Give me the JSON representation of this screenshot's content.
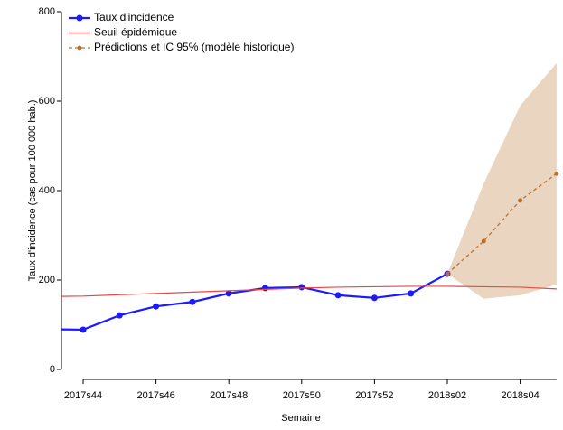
{
  "chart_data": {
    "type": "line",
    "xlabel": "Semaine",
    "ylabel": "Taux d'incidence (cas pour 100 000 hab.)",
    "categories": [
      null,
      "2017s44",
      null,
      "2017s46",
      null,
      "2017s48",
      null,
      "2017s50",
      null,
      "2017s52",
      null,
      "2018s02",
      null,
      "2018s04",
      null
    ],
    "ylim": [
      0,
      800
    ],
    "yticks": [
      0,
      200,
      400,
      600,
      800
    ],
    "legend": "upper left",
    "series": [
      {
        "name": "Taux d'incidence",
        "color": "#1a1aff",
        "style": "line-markers",
        "values": [
          90,
          89,
          121,
          141,
          151,
          170,
          182,
          184,
          166,
          160,
          170,
          214,
          null,
          null,
          null
        ]
      },
      {
        "name": "Seuil épidémique",
        "color": "#ee4444",
        "style": "line",
        "values": [
          163,
          164,
          167,
          170,
          173,
          176,
          179,
          182,
          184,
          185,
          186,
          186,
          185,
          184,
          180
        ]
      },
      {
        "name": "Prédictions et IC 95% (modèle historique)",
        "color": "#b87333",
        "style": "dashed-band",
        "values": [
          null,
          null,
          null,
          null,
          null,
          null,
          null,
          null,
          null,
          null,
          null,
          214,
          287,
          378,
          438
        ],
        "lower": [
          null,
          null,
          null,
          null,
          null,
          null,
          null,
          null,
          null,
          null,
          null,
          214,
          158,
          166,
          190
        ],
        "upper": [
          null,
          null,
          null,
          null,
          null,
          null,
          null,
          null,
          null,
          null,
          null,
          214,
          416,
          590,
          685
        ]
      }
    ]
  }
}
